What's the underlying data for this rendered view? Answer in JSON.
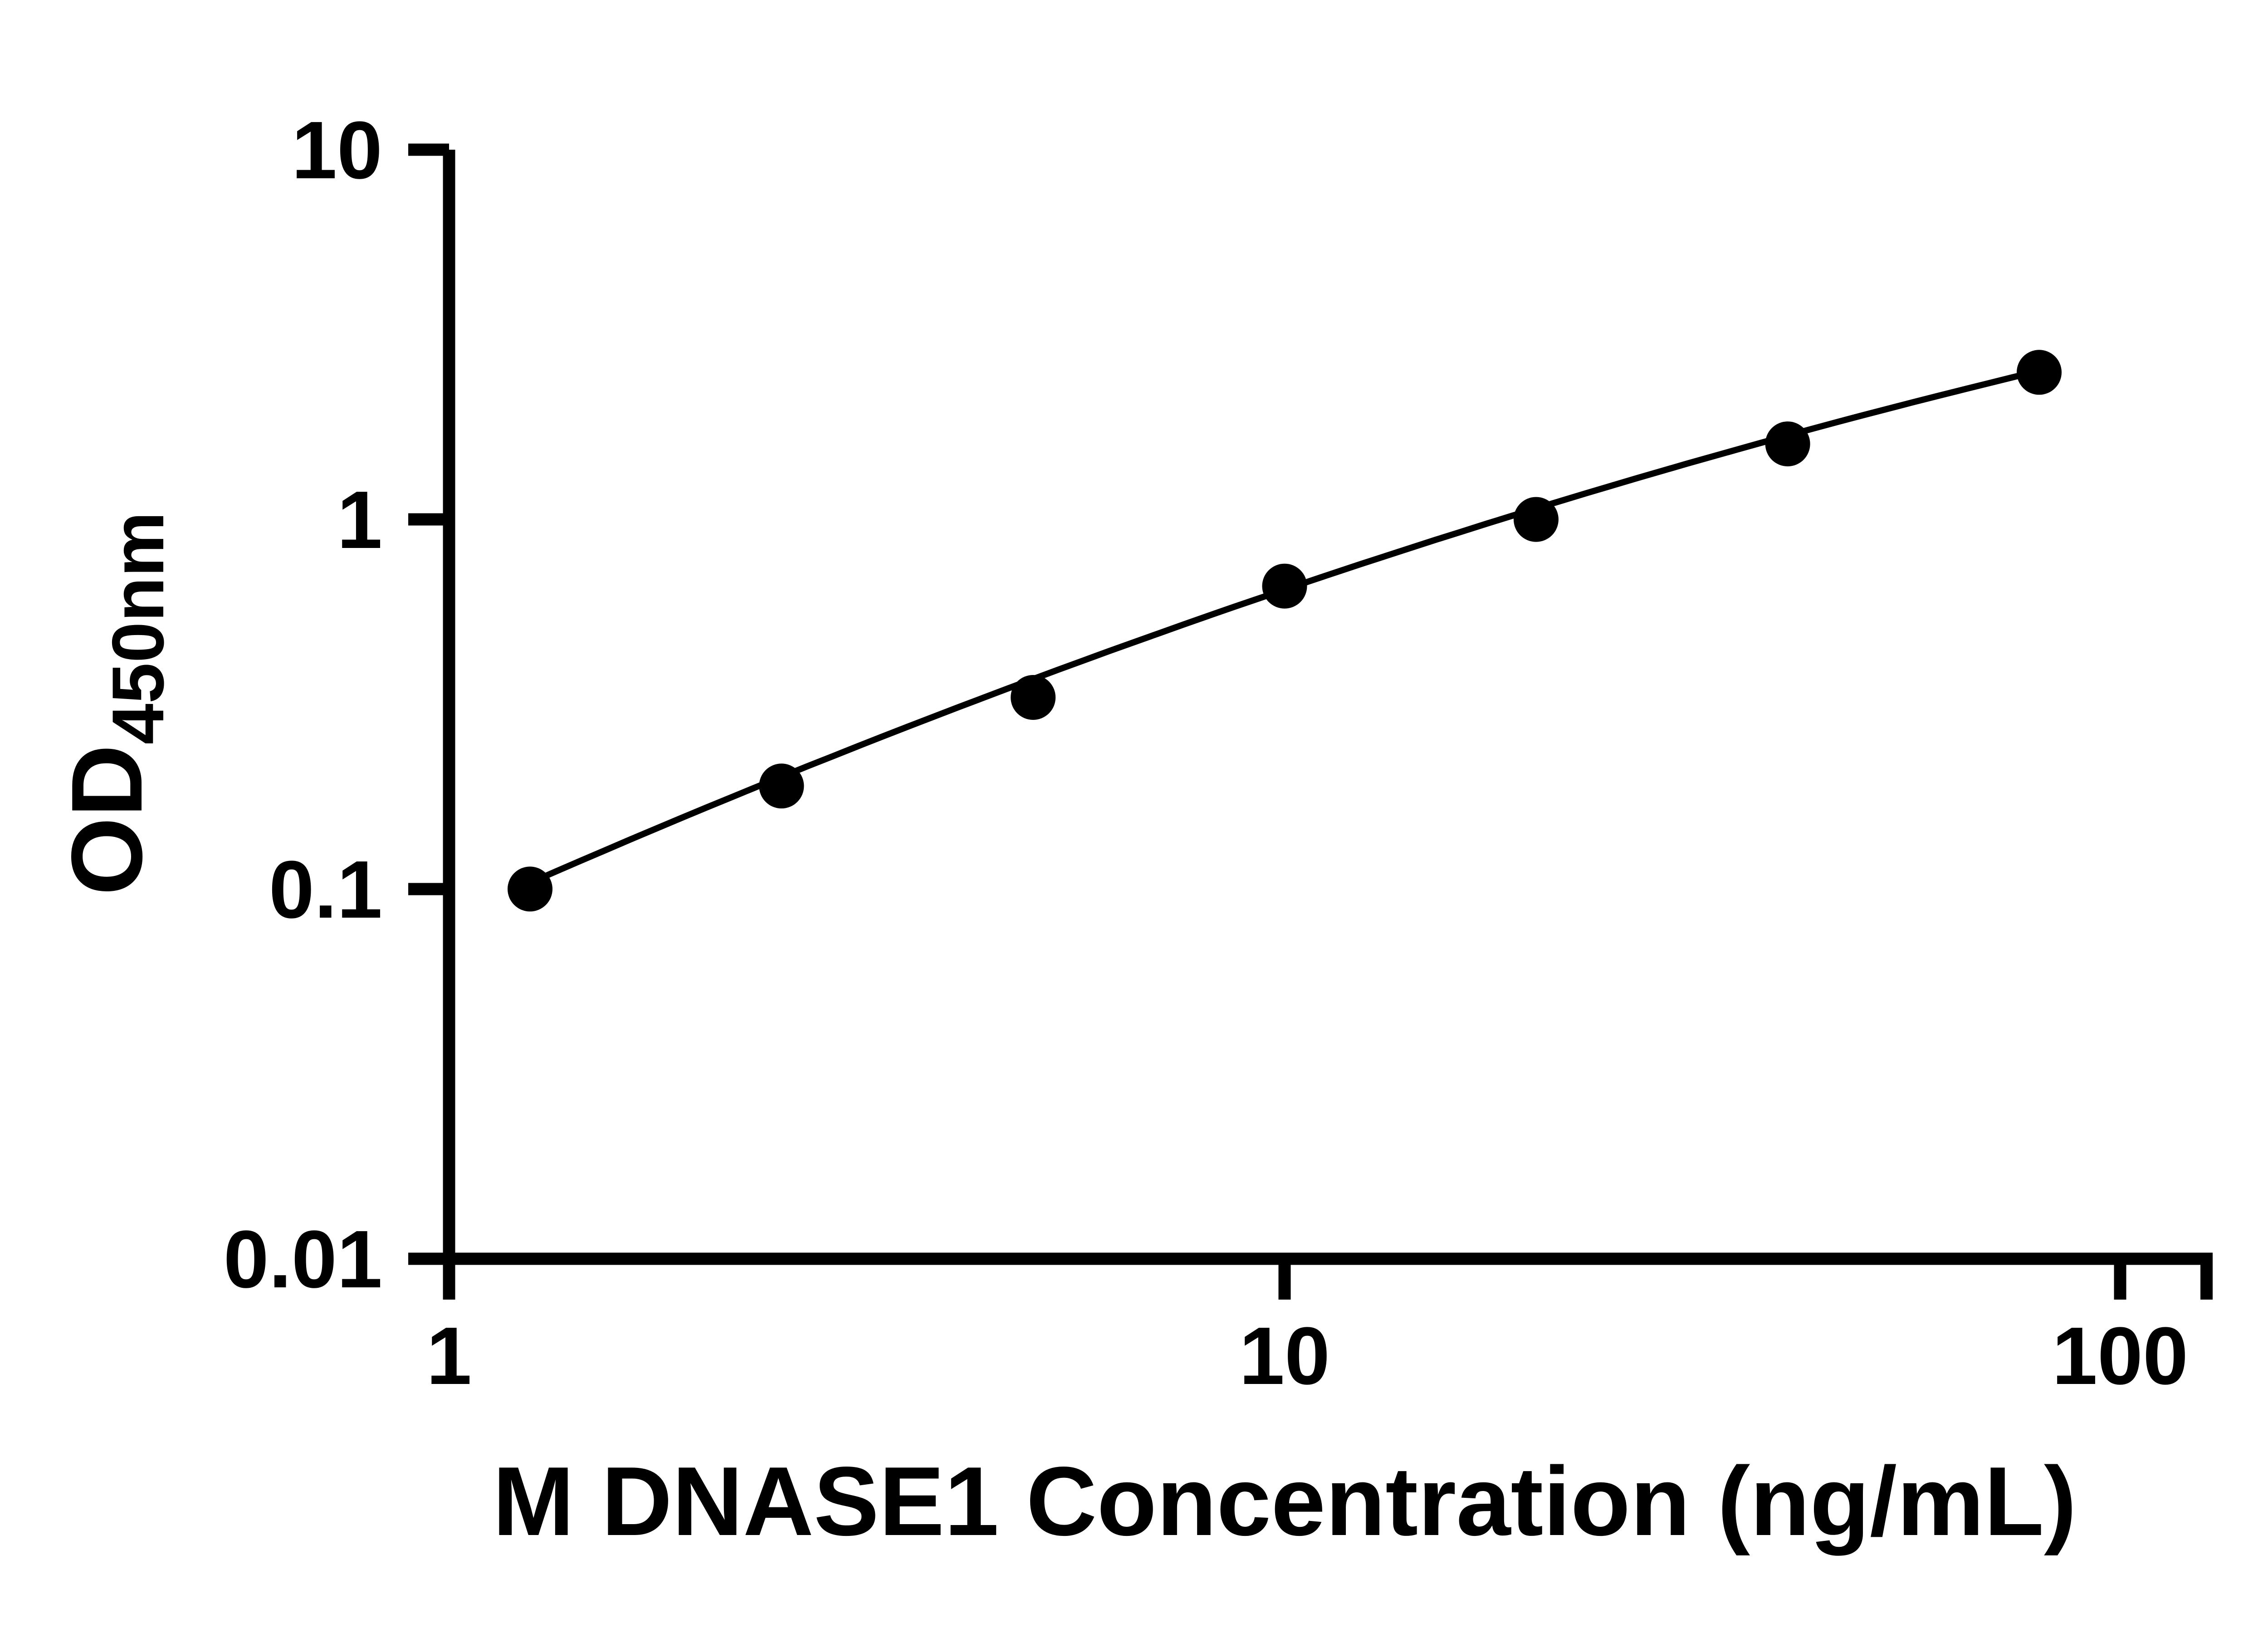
{
  "chart_data": {
    "type": "scatter",
    "title": "",
    "xlabel": "M DNASE1 Concentration (ng/mL)",
    "ylabel": {
      "base": "OD",
      "subscript": "450nm"
    },
    "x_scale": "log",
    "y_scale": "log",
    "xlim": [
      1,
      100
    ],
    "ylim": [
      0.01,
      10
    ],
    "x_tick_values": [
      1,
      10,
      100
    ],
    "x_tick_labels": [
      "1",
      "10",
      "100"
    ],
    "y_tick_values": [
      10,
      1,
      0.1,
      0.01
    ],
    "y_tick_labels": [
      "10",
      "1",
      "0.1",
      "0.01"
    ],
    "grid": false,
    "legend": null,
    "points": [
      {
        "x": 1.25,
        "y": 0.1
      },
      {
        "x": 2.5,
        "y": 0.19
      },
      {
        "x": 5,
        "y": 0.33
      },
      {
        "x": 10,
        "y": 0.66
      },
      {
        "x": 20,
        "y": 1.0
      },
      {
        "x": 40,
        "y": 1.6
      },
      {
        "x": 80,
        "y": 2.5
      }
    ],
    "fit_curve": {
      "model": "quadratic_in_loglog",
      "coefficients": {
        "a": -1.08,
        "b": 1.0136,
        "c": -0.1235
      },
      "x_range": [
        1.25,
        80
      ]
    },
    "colors": {
      "axis": "#000000",
      "marker": "#000000",
      "line": "#000000",
      "background": "#ffffff"
    }
  }
}
